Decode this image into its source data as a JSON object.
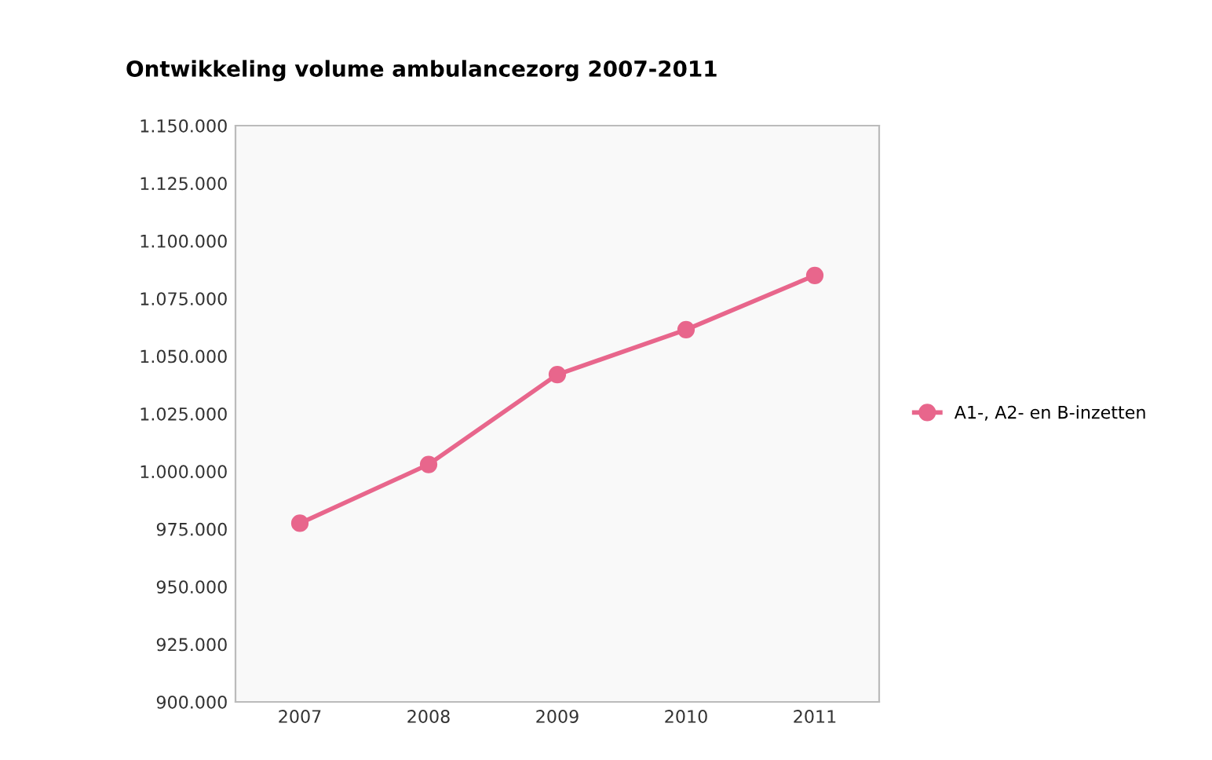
{
  "chart_data": {
    "type": "line",
    "title": "Ontwikkeling volume ambulancezorg 2007-2011",
    "categories": [
      "2007",
      "2008",
      "2009",
      "2010",
      "2011"
    ],
    "series": [
      {
        "name": "A1-, A2- en B-inzetten",
        "color": "#e8668c",
        "values": [
          977500,
          1003000,
          1042000,
          1061500,
          1085000
        ]
      }
    ],
    "ylim": [
      900000,
      1150000
    ],
    "yticks": [
      {
        "value": 900000,
        "label": "900.000"
      },
      {
        "value": 925000,
        "label": "925.000"
      },
      {
        "value": 950000,
        "label": "950.000"
      },
      {
        "value": 975000,
        "label": "975.000"
      },
      {
        "value": 1000000,
        "label": "1.000.000"
      },
      {
        "value": 1025000,
        "label": "1.025.000"
      },
      {
        "value": 1050000,
        "label": "1.050.000"
      },
      {
        "value": 1075000,
        "label": "1.075.000"
      },
      {
        "value": 1100000,
        "label": "1.100.000"
      },
      {
        "value": 1125000,
        "label": "1.125.000"
      },
      {
        "value": 1150000,
        "label": "1.150.000"
      }
    ],
    "grid": false,
    "legend": "right",
    "marker": "circle",
    "line_style": "solid"
  }
}
